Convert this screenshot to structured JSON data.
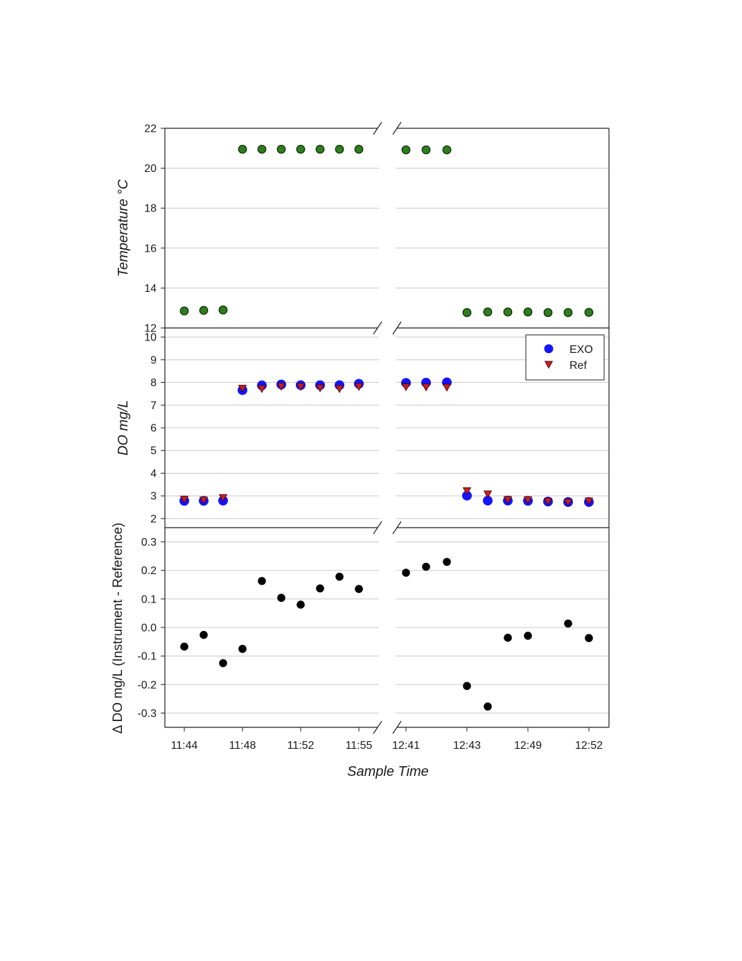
{
  "figure": {
    "xlabel": "Sample Time",
    "x_tick_labels": [
      "11:44",
      "11:48",
      "11:52",
      "11:55",
      "12:41",
      "12:43",
      "12:49",
      "12:52"
    ]
  },
  "chart_data": [
    {
      "type": "scatter",
      "panel": "temperature",
      "title": "",
      "xlabel": "Sample Time",
      "ylabel": "Temperature °C",
      "ylim": [
        12,
        22
      ],
      "yticks": [
        12,
        14,
        16,
        18,
        20,
        22
      ],
      "x": [
        1,
        2,
        3,
        4,
        5,
        6,
        7,
        8,
        9,
        10,
        11,
        12,
        13,
        14,
        15,
        16,
        17,
        18,
        19,
        20
      ],
      "series": [
        {
          "color": "#2e7d1e",
          "values": [
            12.85,
            12.88,
            12.9,
            20.95,
            20.95,
            20.95,
            20.95,
            20.95,
            20.95,
            20.95,
            20.92,
            20.92,
            20.92,
            12.77,
            12.8,
            12.8,
            12.8,
            12.77,
            12.77,
            12.78
          ]
        }
      ],
      "grid": true
    },
    {
      "type": "scatter",
      "panel": "dissolved-oxygen",
      "title": "",
      "ylabel": "DO mg/L",
      "ylim": [
        1.6,
        10.4
      ],
      "yticks": [
        2,
        3,
        4,
        5,
        6,
        7,
        8,
        9,
        10
      ],
      "x": [
        1,
        2,
        3,
        4,
        5,
        6,
        7,
        8,
        9,
        10,
        11,
        12,
        13,
        14,
        15,
        16,
        17,
        18,
        19,
        20
      ],
      "series": [
        {
          "name": "EXO",
          "color": "#1414ff",
          "values": [
            2.78,
            2.78,
            2.79,
            7.66,
            7.87,
            7.91,
            7.88,
            7.88,
            7.88,
            7.94,
            7.98,
            7.99,
            8.0,
            3.01,
            2.79,
            2.79,
            2.78,
            2.75,
            2.73,
            2.73
          ]
        },
        {
          "name": "Ref",
          "color": "#c81e1e",
          "values": [
            2.84,
            2.8,
            2.91,
            7.73,
            7.71,
            7.81,
            7.8,
            7.74,
            7.71,
            7.8,
            7.79,
            7.78,
            7.77,
            3.21,
            3.07,
            2.82,
            2.81,
            2.75,
            2.71,
            2.76
          ]
        }
      ],
      "legend": {
        "position": "top-right",
        "entries": [
          "EXO",
          "Ref"
        ]
      },
      "grid": true
    },
    {
      "type": "scatter",
      "panel": "delta-do",
      "title": "",
      "ylabel": "Δ DO mg/L  (Instrument - Reference)",
      "ylim": [
        -0.35,
        0.35
      ],
      "yticks": [
        -0.3,
        -0.2,
        -0.1,
        0.0,
        0.1,
        0.2,
        0.3
      ],
      "ytick_labels": [
        "-0.3",
        "-0.2",
        "-0.1",
        "0.0",
        "0.1",
        "0.2",
        "0.3"
      ],
      "x": [
        1,
        2,
        3,
        4,
        5,
        6,
        7,
        8,
        9,
        10,
        11,
        12,
        13,
        14,
        15,
        16,
        17,
        18,
        19,
        20
      ],
      "series": [
        {
          "color": "#000000",
          "values": [
            -0.067,
            -0.026,
            -0.125,
            -0.075,
            0.163,
            0.104,
            0.08,
            0.137,
            0.178,
            0.135,
            0.192,
            0.213,
            0.23,
            -0.205,
            -0.277,
            -0.036,
            -0.029,
            null,
            0.014,
            -0.037
          ]
        }
      ],
      "grid": true
    }
  ]
}
